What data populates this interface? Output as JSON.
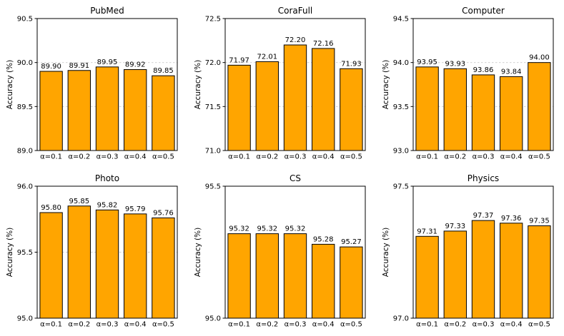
{
  "figure": {
    "background": "#ffffff",
    "bar_color": "#FFA500",
    "bar_edge_color": "#000000",
    "grid_color": "#cccccc",
    "spine_color": "#000000",
    "text_color": "#000000",
    "grid_style": "dashed",
    "legend": "none",
    "rows": 2,
    "cols": 3
  },
  "chart_data": [
    {
      "type": "bar",
      "title": "PubMed",
      "categories": [
        "α=0.1",
        "α=0.2",
        "α=0.3",
        "α=0.4",
        "α=0.5"
      ],
      "values": [
        89.9,
        89.91,
        89.95,
        89.92,
        89.85
      ],
      "value_labels": [
        "89.90",
        "89.91",
        "89.95",
        "89.92",
        "89.85"
      ],
      "xlabel": "",
      "ylabel": "Accuracy (%)",
      "ylim": [
        89.0,
        90.5
      ],
      "yticks": [
        89.0,
        89.5,
        90.0,
        90.5
      ],
      "ytick_labels": [
        "89.0",
        "89.5",
        "90.0",
        "90.5"
      ]
    },
    {
      "type": "bar",
      "title": "CoraFull",
      "categories": [
        "α=0.1",
        "α=0.2",
        "α=0.3",
        "α=0.4",
        "α=0.5"
      ],
      "values": [
        71.97,
        72.01,
        72.2,
        72.16,
        71.93
      ],
      "value_labels": [
        "71.97",
        "72.01",
        "72.20",
        "72.16",
        "71.93"
      ],
      "xlabel": "",
      "ylabel": "Accuracy (%)",
      "ylim": [
        71.0,
        72.5
      ],
      "yticks": [
        71.0,
        71.5,
        72.0,
        72.5
      ],
      "ytick_labels": [
        "71.0",
        "71.5",
        "72.0",
        "72.5"
      ]
    },
    {
      "type": "bar",
      "title": "Computer",
      "categories": [
        "α=0.1",
        "α=0.2",
        "α=0.3",
        "α=0.4",
        "α=0.5"
      ],
      "values": [
        93.95,
        93.93,
        93.86,
        93.84,
        94.0
      ],
      "value_labels": [
        "93.95",
        "93.93",
        "93.86",
        "93.84",
        "94.00"
      ],
      "xlabel": "",
      "ylabel": "Accuracy (%)",
      "ylim": [
        93.0,
        94.5
      ],
      "yticks": [
        93.0,
        93.5,
        94.0,
        94.5
      ],
      "ytick_labels": [
        "93.0",
        "93.5",
        "94.0",
        "94.5"
      ]
    },
    {
      "type": "bar",
      "title": "Photo",
      "categories": [
        "α=0.1",
        "α=0.2",
        "α=0.3",
        "α=0.4",
        "α=0.5"
      ],
      "values": [
        95.8,
        95.85,
        95.82,
        95.79,
        95.76
      ],
      "value_labels": [
        "95.80",
        "95.85",
        "95.82",
        "95.79",
        "95.76"
      ],
      "xlabel": "",
      "ylabel": "Accuracy (%)",
      "ylim": [
        95.0,
        96.0
      ],
      "yticks": [
        95.0,
        95.5,
        96.0
      ],
      "ytick_labels": [
        "95.0",
        "95.5",
        "96.0"
      ]
    },
    {
      "type": "bar",
      "title": "CS",
      "categories": [
        "α=0.1",
        "α=0.2",
        "α=0.3",
        "α=0.4",
        "α=0.5"
      ],
      "values": [
        95.32,
        95.32,
        95.32,
        95.28,
        95.27
      ],
      "value_labels": [
        "95.32",
        "95.32",
        "95.32",
        "95.28",
        "95.27"
      ],
      "xlabel": "",
      "ylabel": "Accuracy (%)",
      "ylim": [
        95.0,
        95.5
      ],
      "yticks": [
        95.0,
        95.5
      ],
      "ytick_labels": [
        "95.0",
        "95.5"
      ]
    },
    {
      "type": "bar",
      "title": "Physics",
      "categories": [
        "α=0.1",
        "α=0.2",
        "α=0.3",
        "α=0.4",
        "α=0.5"
      ],
      "values": [
        97.31,
        97.33,
        97.37,
        97.36,
        97.35
      ],
      "value_labels": [
        "97.31",
        "97.33",
        "97.37",
        "97.36",
        "97.35"
      ],
      "xlabel": "",
      "ylabel": "Accuracy (%)",
      "ylim": [
        97.0,
        97.5
      ],
      "yticks": [
        97.0,
        97.5
      ],
      "ytick_labels": [
        "97.0",
        "97.5"
      ]
    }
  ]
}
